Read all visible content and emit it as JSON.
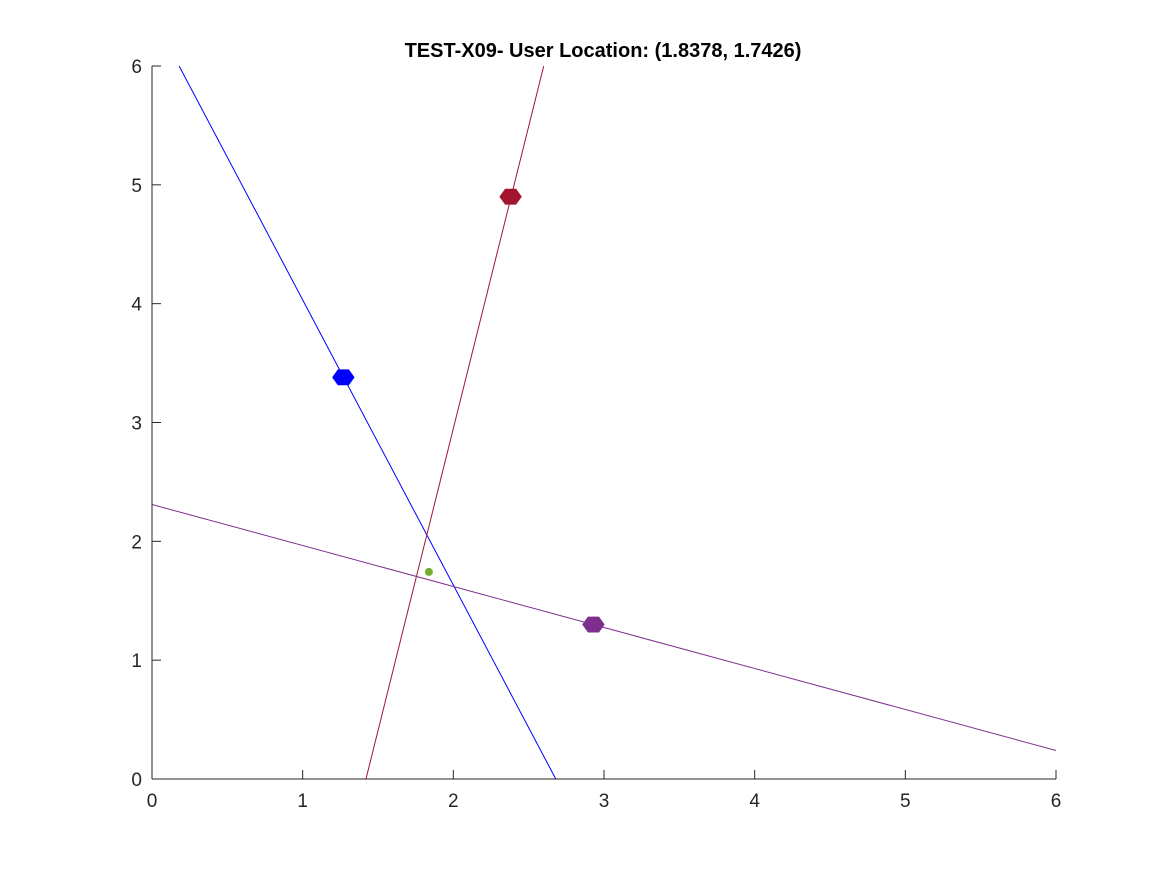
{
  "chart_data": {
    "type": "scatter",
    "title": "TEST-X09- User Location: (1.8378, 1.7426)",
    "xlabel": "",
    "ylabel": "",
    "xlim": [
      0,
      6
    ],
    "ylim": [
      0,
      6
    ],
    "xticks": [
      0,
      1,
      2,
      3,
      4,
      5,
      6
    ],
    "yticks": [
      0,
      1,
      2,
      3,
      4,
      5,
      6
    ],
    "xtick_labels": [
      "0",
      "1",
      "2",
      "3",
      "4",
      "5",
      "6"
    ],
    "ytick_labels": [
      "0",
      "1",
      "2",
      "3",
      "4",
      "5",
      "6"
    ],
    "grid": false,
    "lines": [
      {
        "color": "#0000ff",
        "points": [
          [
            0.18,
            6.0
          ],
          [
            2.68,
            0.0
          ]
        ]
      },
      {
        "color": "#a2142f",
        "points": [
          [
            1.42,
            0.0
          ],
          [
            2.6,
            6.0
          ]
        ]
      },
      {
        "color": "#7e2f8e",
        "points": [
          [
            0.0,
            2.31
          ],
          [
            6.0,
            0.24
          ]
        ]
      }
    ],
    "anchors": [
      {
        "color": "#0000ff",
        "x": 1.27,
        "y": 3.38
      },
      {
        "color": "#a2142f",
        "x": 2.38,
        "y": 4.9
      },
      {
        "color": "#7e2f8e",
        "x": 2.93,
        "y": 1.3
      }
    ],
    "user_point": {
      "color": "#77ac30",
      "x": 1.8378,
      "y": 1.7426
    }
  }
}
